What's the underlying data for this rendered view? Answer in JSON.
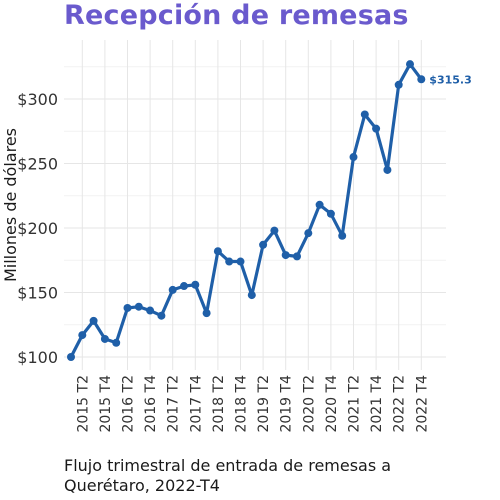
{
  "page": {
    "title": "Recepción de remesas",
    "caption_line1": "Flujo trimestral de entrada de remesas a",
    "caption_line2": "Querétaro, 2022-T4"
  },
  "colors": {
    "title": "#6a5acd",
    "line": "#1f5fa8",
    "label": "#1f5fa8",
    "grid": "#e6e6e6"
  },
  "chart_data": {
    "type": "line",
    "title": "Recepción de remesas",
    "xlabel": "",
    "ylabel": "Millones de dólares",
    "ylim": [
      97,
      333
    ],
    "y_ticks": [
      100,
      150,
      200,
      250,
      300
    ],
    "y_tick_labels": [
      "$100",
      "$150",
      "$200",
      "$250",
      "$300"
    ],
    "x_tick_labels": [
      "2015 T2",
      "2015 T4",
      "2016 T2",
      "2016 T4",
      "2017 T2",
      "2017 T4",
      "2018 T2",
      "2018 T4",
      "2019 T2",
      "2019 T4",
      "2020 T2",
      "2020 T4",
      "2021 T2",
      "2021 T4",
      "2022 T2",
      "2022 T4"
    ],
    "x_tick_positions": [
      "2015 T2",
      "2015 T4",
      "2016 T2",
      "2016 T4",
      "2017 T2",
      "2017 T4",
      "2018 T2",
      "2018 T4",
      "2019 T2",
      "2019 T4",
      "2020 T2",
      "2020 T4",
      "2021 T2",
      "2021 T4",
      "2022 T2",
      "2022 T4"
    ],
    "grid": true,
    "series": [
      {
        "x": [
          "2015 T1",
          "2015 T2",
          "2015 T3",
          "2015 T4",
          "2016 T1",
          "2016 T2",
          "2016 T3",
          "2016 T4",
          "2017 T1",
          "2017 T2",
          "2017 T3",
          "2017 T4",
          "2018 T1",
          "2018 T2",
          "2018 T3",
          "2018 T4",
          "2019 T1",
          "2019 T2",
          "2019 T3",
          "2019 T4",
          "2020 T1",
          "2020 T2",
          "2020 T3",
          "2020 T4",
          "2021 T1",
          "2021 T2",
          "2021 T3",
          "2021 T4",
          "2022 T1",
          "2022 T2",
          "2022 T3",
          "2022 T4"
        ],
        "values": [
          100,
          117,
          128,
          114,
          111,
          138,
          139,
          136,
          132,
          152,
          155,
          156,
          134,
          182,
          174,
          174,
          148,
          187,
          198,
          179,
          178,
          196,
          218,
          211,
          194,
          255,
          288,
          277,
          245,
          311,
          327,
          315.3
        ]
      }
    ],
    "annotations": [
      {
        "text": "$315.3",
        "x": "2022 T4",
        "y": 315.3
      }
    ]
  }
}
